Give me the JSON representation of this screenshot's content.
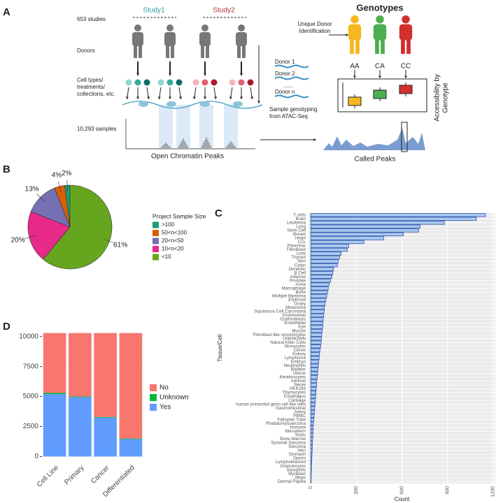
{
  "diagram": {
    "panel": "A",
    "studies": "653 studies",
    "study1": "Study1",
    "study2": "Study2",
    "donors": "Donors",
    "cell_types": [
      "Cell types/",
      "treatments/",
      "collections, etc."
    ],
    "samples": "10,293 samples",
    "open_peaks": "Open Chromatin Peaks",
    "unique_donor": [
      "Unique Donor",
      "Identification"
    ],
    "genotypes": "Genotypes",
    "geno_labels": [
      "AA",
      "CA",
      "CC"
    ],
    "donor_labels": [
      "Donor 1",
      "Donor 2",
      "......",
      "Donor n"
    ],
    "sample_genotyping": [
      "Sample genotyping",
      "from ATAC-Seq"
    ],
    "accessibility": [
      "Accessibility by",
      "Genotype"
    ],
    "called_peaks": "Called Peaks"
  },
  "chart_data": [
    {
      "type": "pie",
      "panel": "B",
      "legend_title": "Project Sample Size",
      "categories": [
        ">100",
        "50<n<100",
        "20<n<50",
        "10<n<20",
        "<10"
      ],
      "values": [
        2,
        4,
        13,
        20,
        61
      ],
      "value_labels": [
        "2%",
        "4%",
        "13%",
        "20%",
        "61%"
      ],
      "colors": [
        "#1b9e77",
        "#d95f02",
        "#7570b3",
        "#e7298a",
        "#66a61e"
      ]
    },
    {
      "type": "bar",
      "orientation": "horizontal",
      "panel": "C",
      "ylabel": "Tissue/Cell",
      "xlabel": "Count",
      "color": "#a9cbee",
      "edge_color": "#2040a8",
      "grid": true,
      "categories": [
        "T cells",
        "Brain",
        "Leukemia",
        "Lung",
        "Stem Cell",
        "Breast",
        "Heart",
        "LCL",
        "Pancreas",
        "Fibroblast",
        "Liver",
        "Thyroid",
        "Skin",
        "Colon",
        "Dendritic",
        "B Cell",
        "Adipose",
        "Prostate",
        "Aorta",
        "Macrophage",
        "Bone",
        "Multiple Myeloma",
        "Erythroid",
        "Ovary",
        "Melanoma",
        "Squamous Cell Carcinoma",
        "Endometrial",
        "Erythroblasts",
        "Endothelial",
        "Eye",
        "Muscle",
        "Fibroblast-like synoviocytes",
        "UNKNOWN",
        "Natural Killer Cells",
        "Monocytes",
        "Cervix",
        "Kidney",
        "Lymphoma",
        "Embryo",
        "Neutrophils",
        "Bladder",
        "Uterus",
        "Keratinocytes",
        "Adrenal",
        "Nerve",
        "HEK293",
        "Thymocytes",
        "Esophagus",
        "Cartilage",
        "human primordial germ cell like cells",
        "Gastrointestinal",
        "Artery",
        "PBMC",
        "Fallopian Tube",
        "Rhabdomyosarcoma",
        "Immune",
        "Mesoderm",
        "Testis",
        "Bone Marrow",
        "Synovial Sarcoma",
        "Sarcoma",
        "Vein",
        "Stomach",
        "Sperm",
        "Lymphoblastoid",
        "Granulocytes",
        "Basophils",
        "Myoblast",
        "iBlast",
        "Dermal Papilla"
      ],
      "values": [
        1150,
        1090,
        880,
        720,
        710,
        610,
        480,
        350,
        250,
        240,
        200,
        190,
        180,
        175,
        150,
        145,
        140,
        130,
        120,
        115,
        110,
        105,
        100,
        95,
        90,
        88,
        85,
        82,
        80,
        78,
        75,
        72,
        70,
        68,
        65,
        60,
        58,
        55,
        52,
        50,
        48,
        45,
        43,
        40,
        38,
        36,
        34,
        32,
        30,
        28,
        26,
        24,
        22,
        20,
        18,
        16,
        15,
        14,
        12,
        11,
        10,
        9,
        8,
        7,
        6,
        5,
        4,
        3,
        2,
        2
      ],
      "xlim": [
        -15,
        1215
      ],
      "xticks": [
        0,
        300,
        600,
        900,
        1200
      ]
    },
    {
      "type": "stacked_bar",
      "panel": "D",
      "categories": [
        "Cell Line",
        "Primary",
        "Cancer",
        "Differentiated"
      ],
      "series": [
        {
          "name": "No",
          "color": "#f8766d",
          "values": [
            4993,
            5293,
            6993,
            8793
          ]
        },
        {
          "name": "Unknown",
          "color": "#00ba38",
          "values": [
            100,
            50,
            50,
            50
          ]
        },
        {
          "name": "Yes",
          "color": "#619cff",
          "values": [
            5200,
            4950,
            3250,
            1450
          ]
        }
      ],
      "ylim": [
        -500,
        10800
      ],
      "yticks": [
        0,
        2500,
        5000,
        7500,
        10000
      ],
      "grid": true
    }
  ]
}
